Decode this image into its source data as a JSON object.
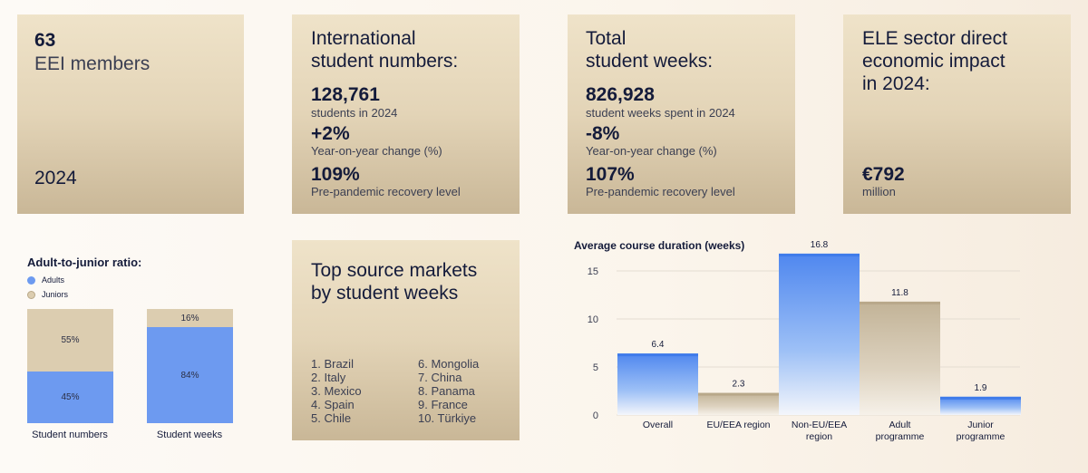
{
  "members": {
    "count": "63",
    "label": "EEI members",
    "year": "2024"
  },
  "intl": {
    "title_line1": "International",
    "title_line2": "student numbers:",
    "value1": "128,761",
    "label1": "students in 2024",
    "value2": "+2%",
    "label2": "Year-on-year change (%)",
    "value3": "109%",
    "label3": "Pre-pandemic recovery level"
  },
  "weeks": {
    "title_line1": "Total",
    "title_line2": "student weeks:",
    "value1": "826,928",
    "label1": "student weeks spent in 2024",
    "value2": "-8%",
    "label2": "Year-on-year change (%)",
    "value3": "107%",
    "label3": "Pre-pandemic recovery level"
  },
  "impact": {
    "title_line1": "ELE sector direct",
    "title_line2": "economic impact",
    "title_line3": "in 2024:",
    "value": "€792",
    "unit": "million"
  },
  "markets": {
    "title_line1": "Top source markets",
    "title_line2": "by student weeks",
    "left": [
      "1. Brazil",
      "2. Italy",
      "3. Mexico",
      "4. Spain",
      "5. Chile"
    ],
    "right": [
      "6. Mongolia",
      "7. China",
      "8. Panama",
      "9. France",
      "10. Türkiye"
    ]
  },
  "colors": {
    "adults": "#6d9af0",
    "juniors": "#dccdb0",
    "accent": "#141b3a"
  },
  "chart_data": [
    {
      "type": "bar",
      "title": "Adult-to-junior ratio:",
      "stacked": true,
      "categories": [
        "Student numbers",
        "Student weeks"
      ],
      "series": [
        {
          "name": "Adults",
          "values": [
            45,
            84
          ],
          "labels": [
            "45%",
            "84%"
          ]
        },
        {
          "name": "Juniors",
          "values": [
            55,
            16
          ],
          "labels": [
            "55%",
            "16%"
          ]
        }
      ],
      "legend": "top-left",
      "ylim": [
        0,
        100
      ],
      "grid": false
    },
    {
      "type": "bar",
      "title": "Average course duration (weeks)",
      "categories": [
        "Overall",
        "EU/EEA region",
        "Non-EU/EEA region",
        "Adult programme",
        "Junior programme"
      ],
      "category_lines": [
        [
          "Overall"
        ],
        [
          "EU/EEA region"
        ],
        [
          "Non-EU/EEA",
          "region"
        ],
        [
          "Adult",
          "programme"
        ],
        [
          "Junior",
          "programme"
        ]
      ],
      "values": [
        6.4,
        2.3,
        16.8,
        11.8,
        1.9
      ],
      "value_labels": [
        "6.4",
        "2.3",
        "16.8",
        "11.8",
        "1.9"
      ],
      "bar_styles": [
        "blue",
        "tan",
        "blue",
        "tan",
        "blue"
      ],
      "yticks": [
        0,
        5,
        10,
        15
      ],
      "ylim": [
        0,
        17
      ],
      "grid": true
    }
  ]
}
